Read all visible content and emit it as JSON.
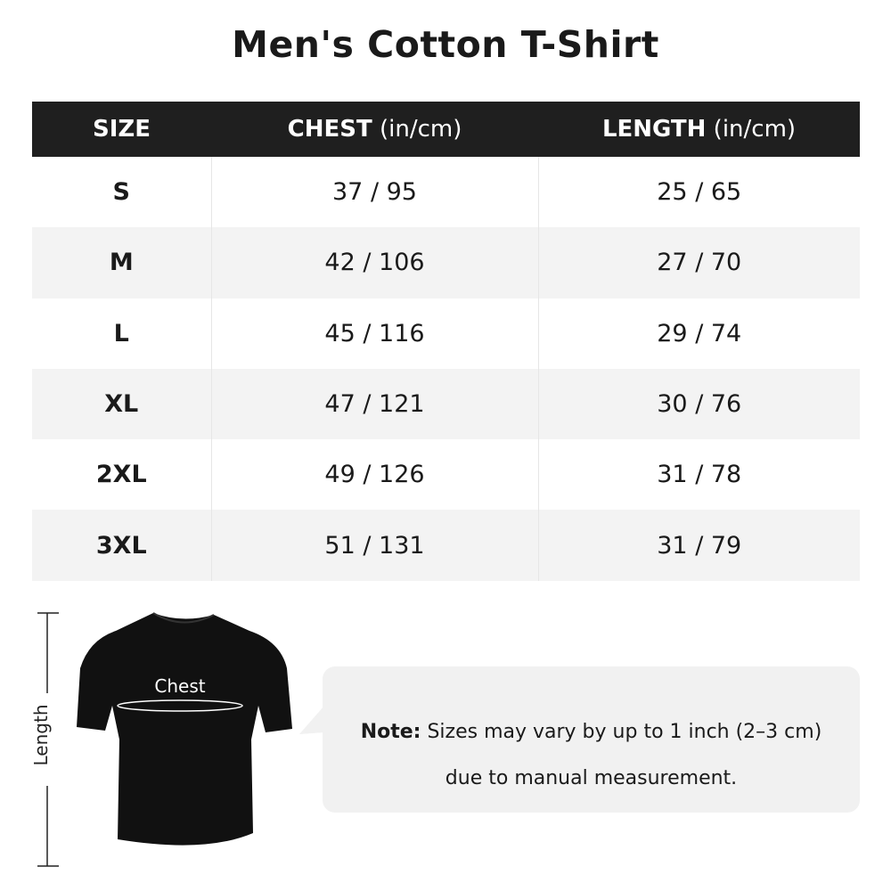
{
  "title": "Men's Cotton T-Shirt",
  "table": {
    "headers": [
      {
        "label": "SIZE",
        "unit": ""
      },
      {
        "label": "CHEST",
        "unit": " (in/cm)"
      },
      {
        "label": "LENGTH",
        "unit": " (in/cm)"
      }
    ],
    "rows": [
      {
        "size": "S",
        "chest": "37 / 95",
        "length": "25 / 65"
      },
      {
        "size": "M",
        "chest": "42 / 106",
        "length": "27 / 70"
      },
      {
        "size": "L",
        "chest": "45 / 116",
        "length": "29 / 74"
      },
      {
        "size": "XL",
        "chest": "47 / 121",
        "length": "30 / 76"
      },
      {
        "size": "2XL",
        "chest": "49 / 126",
        "length": "31 / 78"
      },
      {
        "size": "3XL",
        "chest": "51 / 131",
        "length": "31 / 79"
      }
    ]
  },
  "diagram": {
    "chest_label": "Chest",
    "length_label": "Length"
  },
  "note": {
    "prefix": "Note:",
    "line1": " Sizes may vary by up to 1 inch (2–3 cm)",
    "line2": "due to manual measurement."
  }
}
